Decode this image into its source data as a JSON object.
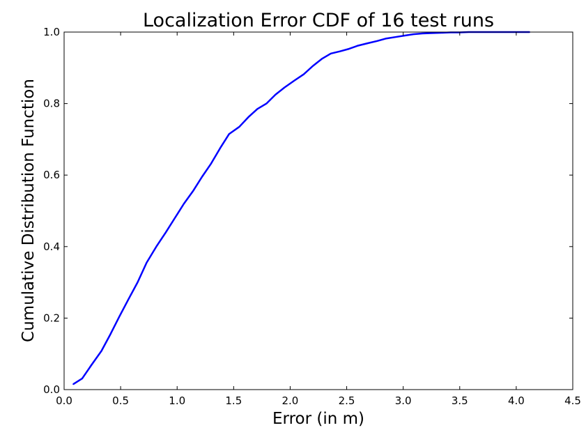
{
  "chart_data": {
    "type": "line",
    "title": "Localization Error CDF of 16 test runs",
    "xlabel": "Error (in m)",
    "ylabel": "Cumulative Distribution Function",
    "xlim": [
      0.0,
      4.5
    ],
    "ylim": [
      0.0,
      1.0
    ],
    "xticks": [
      "0.0",
      "0.5",
      "1.0",
      "1.5",
      "2.0",
      "2.5",
      "3.0",
      "3.5",
      "4.0",
      "4.5"
    ],
    "yticks": [
      "0.0",
      "0.2",
      "0.4",
      "0.6",
      "0.8",
      "1.0"
    ],
    "grid": false,
    "legend": false,
    "series": [
      {
        "color": "#0000ff",
        "x": [
          0.08,
          0.16,
          0.24,
          0.33,
          0.41,
          0.49,
          0.57,
          0.65,
          0.73,
          0.82,
          0.9,
          0.98,
          1.06,
          1.14,
          1.22,
          1.3,
          1.38,
          1.46,
          1.55,
          1.63,
          1.71,
          1.79,
          1.87,
          1.95,
          2.04,
          2.12,
          2.2,
          2.28,
          2.36,
          2.44,
          2.52,
          2.6,
          2.69,
          2.77,
          2.85,
          2.93,
          3.01,
          3.09,
          3.17,
          3.25,
          3.34,
          3.42,
          3.5,
          3.58,
          3.66,
          3.74,
          3.82,
          3.9,
          3.99,
          4.07,
          4.12
        ],
        "y": [
          0.015,
          0.031,
          0.068,
          0.108,
          0.155,
          0.205,
          0.253,
          0.3,
          0.355,
          0.402,
          0.44,
          0.48,
          0.52,
          0.555,
          0.595,
          0.632,
          0.675,
          0.715,
          0.735,
          0.762,
          0.785,
          0.8,
          0.825,
          0.845,
          0.865,
          0.882,
          0.905,
          0.925,
          0.94,
          0.946,
          0.953,
          0.962,
          0.969,
          0.975,
          0.982,
          0.986,
          0.99,
          0.994,
          0.996,
          0.997,
          0.998,
          0.999,
          0.999,
          1.0,
          1.0,
          1.0,
          1.0,
          1.0,
          1.0,
          1.0,
          1.0
        ]
      }
    ]
  }
}
